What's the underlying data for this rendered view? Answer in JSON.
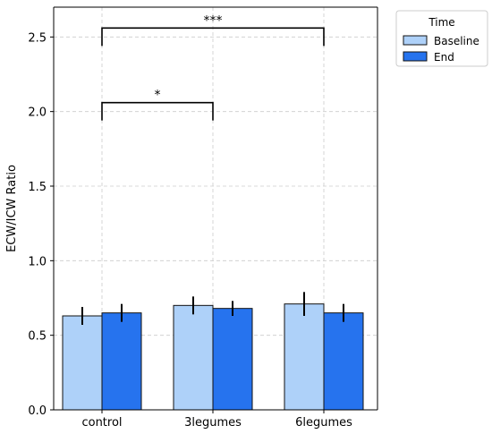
{
  "chart_data": {
    "type": "bar",
    "categories": [
      "control",
      "3legumes",
      "6legumes"
    ],
    "series": [
      {
        "name": "Baseline",
        "values": [
          0.63,
          0.7,
          0.71
        ],
        "errors": [
          0.06,
          0.06,
          0.08
        ],
        "color": "#aed1f9"
      },
      {
        "name": "End",
        "values": [
          0.65,
          0.68,
          0.65
        ],
        "errors": [
          0.06,
          0.05,
          0.06
        ],
        "color": "#2673ee"
      }
    ],
    "ylabel": "ECW/ICW Ratio",
    "ylim": [
      0,
      2.7
    ],
    "yticks": [
      "0.0",
      "0.5",
      "1.0",
      "1.5",
      "2.0",
      "2.5"
    ],
    "ytick_values": [
      0,
      0.5,
      1.0,
      1.5,
      2.0,
      2.5
    ],
    "grid": true,
    "legend": {
      "title": "Time",
      "placement": "top-right, outside plot"
    },
    "significance": [
      {
        "from": "control",
        "to": "3legumes",
        "level": 2.06,
        "label": "*"
      },
      {
        "from": "control",
        "to": "6legumes",
        "level": 2.56,
        "label": "***"
      }
    ]
  }
}
